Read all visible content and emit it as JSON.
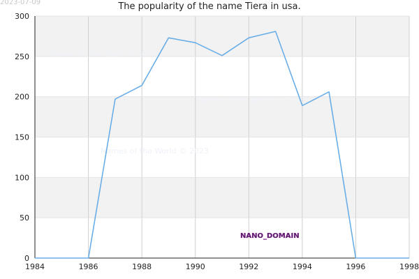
{
  "date_stamp": "2023-07-09",
  "watermark": "Names of the World © 2023",
  "badge": "NANO_DOMAIN",
  "chart_data": {
    "type": "line",
    "title": "The popularity of the name Tiera in usa.",
    "xlabel": "",
    "ylabel": "",
    "x": [
      1984,
      1985,
      1986,
      1987,
      1988,
      1989,
      1990,
      1991,
      1992,
      1993,
      1994,
      1995,
      1996,
      1997,
      1998
    ],
    "values": [
      0,
      0,
      0,
      197,
      214,
      273,
      267,
      251,
      273,
      281,
      189,
      206,
      0,
      0,
      0
    ],
    "xlim": [
      1984,
      1998
    ],
    "ylim": [
      0,
      300
    ],
    "xticks": [
      1984,
      1986,
      1988,
      1990,
      1992,
      1994,
      1996,
      1998
    ],
    "yticks": [
      0,
      50,
      100,
      150,
      200,
      250,
      300
    ],
    "line_color": "#6aaee8",
    "band_color": "#f2f2f2",
    "grid": true
  }
}
